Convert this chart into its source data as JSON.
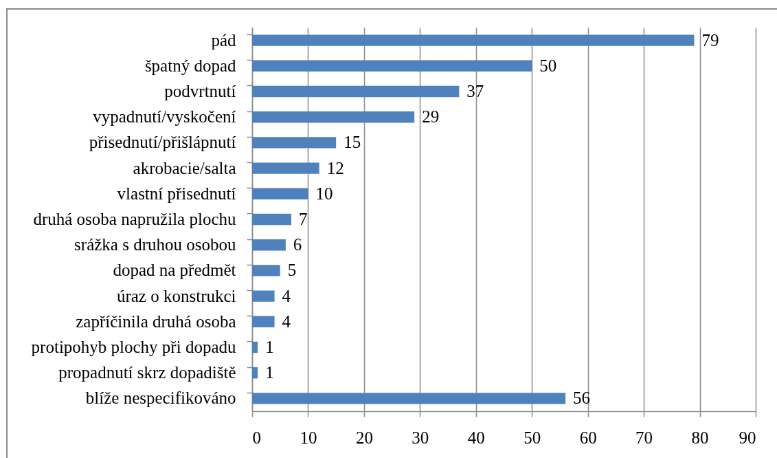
{
  "chart_data": {
    "type": "bar",
    "orientation": "horizontal",
    "categories": [
      "pád",
      "špatný dopad",
      "podvrtnutí",
      "vypadnutí/vyskočení",
      "přisednutí/přišlápnutí",
      "akrobacie/salta",
      "vlastní přisednutí",
      "druhá osoba napružila plochu",
      "srážka s druhou osobou",
      "dopad na předmět",
      "úraz o konstrukci",
      "zapříčinila druhá osoba",
      "protipohyb plochy při dopadu",
      "propadnutí skrz dopadiště",
      "blíže nespecifikováno"
    ],
    "values": [
      79,
      50,
      37,
      29,
      15,
      12,
      10,
      7,
      6,
      5,
      4,
      4,
      1,
      1,
      56
    ],
    "color": "#4f81bd",
    "xlim": [
      0,
      90
    ],
    "xticks": [
      0,
      10,
      20,
      30,
      40,
      50,
      60,
      70,
      80,
      90
    ],
    "grid": "x",
    "data_labels": true
  }
}
